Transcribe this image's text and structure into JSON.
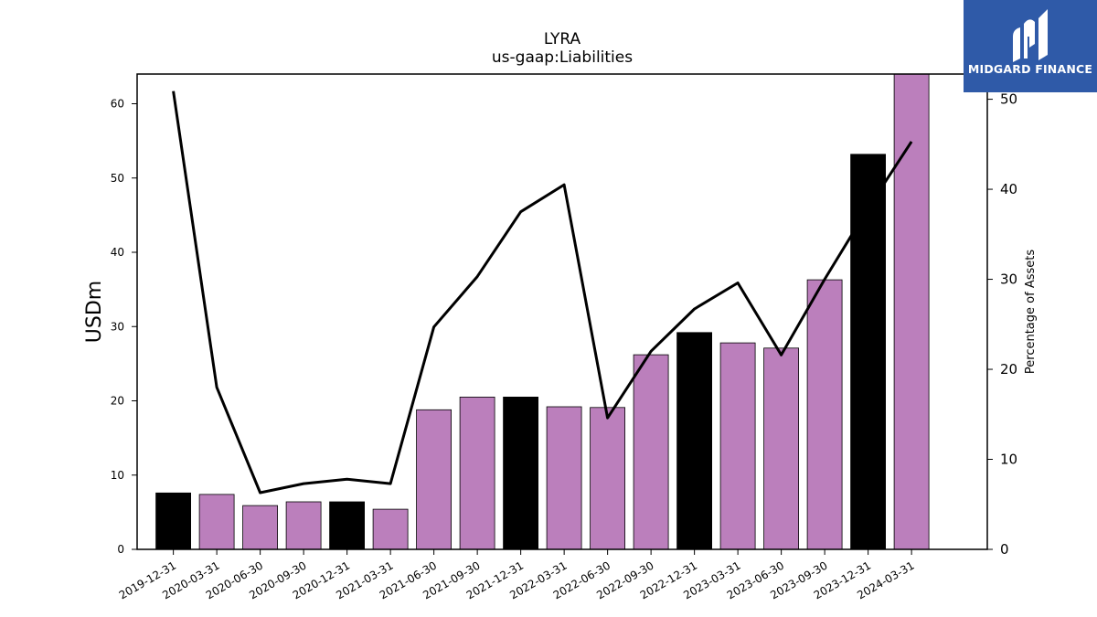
{
  "chart_data": {
    "type": "bar",
    "title": "LYRA",
    "subtitle": "us-gaap:Liabilities",
    "ylabel": "USDm",
    "y2label": "Percentage of Assets",
    "ylim": [
      0,
      64
    ],
    "y2lim": [
      0,
      52.8
    ],
    "yticks": [
      0,
      10,
      20,
      30,
      40,
      50,
      60
    ],
    "y2ticks": [
      0,
      10,
      20,
      30,
      40,
      50
    ],
    "categories": [
      "2019-12-31",
      "2020-03-31",
      "2020-06-30",
      "2020-09-30",
      "2020-12-31",
      "2021-03-31",
      "2021-06-30",
      "2021-09-30",
      "2021-12-31",
      "2022-03-31",
      "2022-06-30",
      "2022-09-30",
      "2022-12-31",
      "2023-03-31",
      "2023-06-30",
      "2023-09-30",
      "2023-12-31",
      "2024-03-31"
    ],
    "series": [
      {
        "values": [
          7.6,
          7.4,
          5.9,
          6.4,
          6.4,
          5.4,
          18.8,
          20.5,
          20.5,
          19.2,
          19.1,
          26.2,
          29.2,
          27.8,
          27.1,
          36.3,
          53.2,
          64.0
        ],
        "colors": [
          "#000000",
          "#bb7fbc",
          "#bb7fbc",
          "#bb7fbc",
          "#000000",
          "#bb7fbc",
          "#bb7fbc",
          "#bb7fbc",
          "#000000",
          "#bb7fbc",
          "#bb7fbc",
          "#bb7fbc",
          "#000000",
          "#bb7fbc",
          "#bb7fbc",
          "#bb7fbc",
          "#000000",
          "#bb7fbc"
        ]
      },
      {
        "type": "line",
        "axis": "right",
        "color": "#000000",
        "values": [
          50.9,
          18.0,
          6.3,
          7.3,
          7.8,
          7.3,
          24.7,
          30.3,
          37.5,
          40.5,
          14.6,
          22.0,
          26.7,
          29.6,
          21.6,
          30.0,
          37.9,
          45.3
        ]
      }
    ]
  },
  "logo": {
    "text": "MIDGARD FINANCE",
    "color": "#2f5aa8"
  }
}
